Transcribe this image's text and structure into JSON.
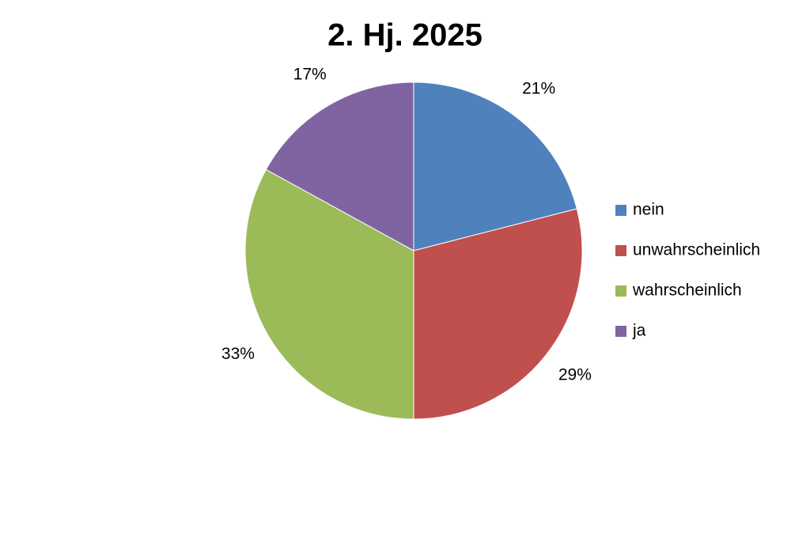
{
  "chart_data": {
    "type": "pie",
    "title": "2. Hj. 2025",
    "categories": [
      "nein",
      "unwahrscheinlich",
      "wahrscheinlich",
      "ja"
    ],
    "values": [
      21,
      29,
      33,
      17
    ],
    "value_labels": [
      "21%",
      "29%",
      "33%",
      "17%"
    ],
    "colors": [
      "#4f81bd",
      "#c0504d",
      "#9bbb59",
      "#8064a2"
    ],
    "legend": "right"
  }
}
